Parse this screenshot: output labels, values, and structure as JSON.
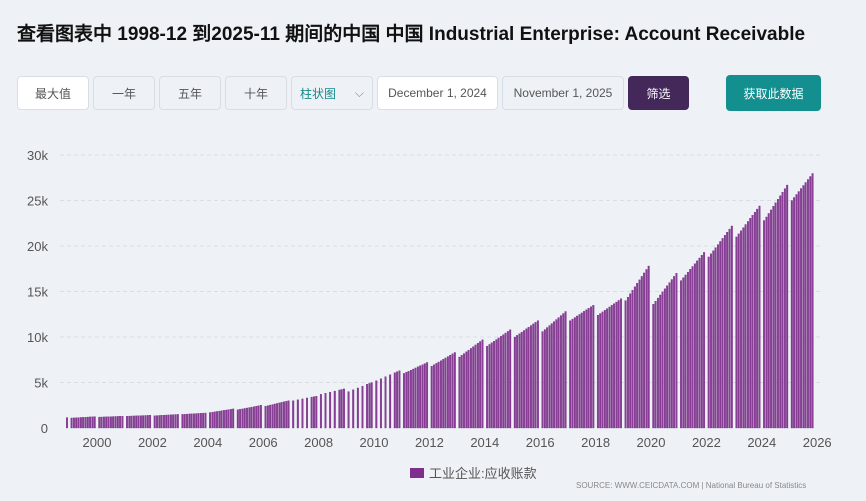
{
  "title": "查看图表中 1998-12 到2025-11 期间的中国 中国 Industrial Enterprise: Account Receivable",
  "toolbar": {
    "max": "最大值",
    "one_year": "一年",
    "five_year": "五年",
    "ten_year": "十年",
    "chart_type": "柱状图",
    "start_date": "December 1, 2024",
    "end_date": "November 1, 2025",
    "filter": "筛选",
    "get_data": "获取此数据"
  },
  "source": "SOURCE: WWW.CEICDATA.COM | National Bureau of Statistics",
  "colors": {
    "bar": "#8a3f97",
    "bar_edge": "#6a1f7a"
  },
  "chart_data": {
    "type": "bar",
    "series_name": "工业企业:应收账款",
    "ylim": [
      0,
      30000
    ],
    "yticks": [
      0,
      5000,
      10000,
      15000,
      20000,
      25000,
      30000
    ],
    "ytick_labels": [
      "0",
      "5k",
      "10k",
      "15k",
      "20k",
      "25k",
      "30k"
    ],
    "xticks": [
      2000,
      2002,
      2004,
      2006,
      2008,
      2010,
      2012,
      2014,
      2016,
      2018,
      2020,
      2022,
      2024,
      2026
    ],
    "xtick_labels": [
      "2000",
      "2002",
      "2004",
      "2006",
      "2008",
      "2010",
      "2012",
      "2014",
      "2016",
      "2018",
      "2020",
      "2022",
      "2024",
      "2026"
    ],
    "first_point": {
      "date": "1998-12",
      "value": 1150
    },
    "annual_anchors_note_units": "value at Feb and Dec of each year, monthly values interpolated",
    "annual": [
      [
        1999,
        1100,
        1250
      ],
      [
        2000,
        1200,
        1300
      ],
      [
        2001,
        1300,
        1400
      ],
      [
        2002,
        1350,
        1500
      ],
      [
        2003,
        1500,
        1650
      ],
      [
        2004,
        1700,
        2100
      ],
      [
        2005,
        2000,
        2500
      ],
      [
        2006,
        2400,
        3000
      ],
      [
        2007,
        3000,
        3500
      ],
      [
        2008,
        3700,
        4300
      ],
      [
        2009,
        4000,
        5000
      ],
      [
        2010,
        5200,
        6300
      ],
      [
        2011,
        6000,
        7200
      ],
      [
        2012,
        6800,
        8300
      ],
      [
        2013,
        7800,
        9700
      ],
      [
        2014,
        9000,
        10800
      ],
      [
        2015,
        10000,
        11800
      ],
      [
        2016,
        10600,
        12800
      ],
      [
        2017,
        11800,
        13500
      ],
      [
        2018,
        12400,
        14200
      ],
      [
        2019,
        14000,
        17800
      ],
      [
        2020,
        13600,
        17000
      ],
      [
        2021,
        16200,
        19300
      ],
      [
        2022,
        18800,
        22200
      ],
      [
        2023,
        21000,
        24400
      ],
      [
        2024,
        22800,
        26700
      ],
      [
        2025,
        25000,
        28300
      ]
    ],
    "last_month": "2025-11",
    "grid": true,
    "legend": "bottom-center"
  }
}
